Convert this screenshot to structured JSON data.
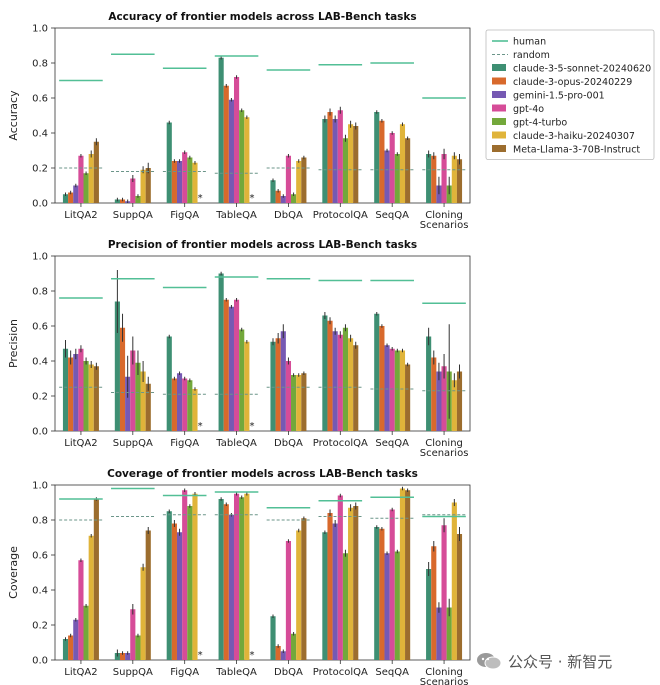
{
  "colors": {
    "human": "#52bf96",
    "random": "#6b9589",
    "claude-3-5-sonnet-20240620": "#3e8f73",
    "claude-3-opus-20240229": "#d8692c",
    "gemini-1.5-pro-001": "#7659b3",
    "gpt-4o": "#d64c98",
    "gpt-4-turbo": "#73a83b",
    "claude-3-haiku-20240307": "#e0b43a",
    "Meta-Llama-3-70B-Instruct": "#9c6d2e"
  },
  "legend": {
    "placement": "outside-right",
    "entries": [
      {
        "label": "human",
        "style": "solid",
        "colorKey": "human"
      },
      {
        "label": "random",
        "style": "dashed",
        "colorKey": "random"
      },
      {
        "label": "claude-3-5-sonnet-20240620",
        "style": "bar",
        "colorKey": "claude-3-5-sonnet-20240620"
      },
      {
        "label": "claude-3-opus-20240229",
        "style": "bar",
        "colorKey": "claude-3-opus-20240229"
      },
      {
        "label": "gemini-1.5-pro-001",
        "style": "bar",
        "colorKey": "gemini-1.5-pro-001"
      },
      {
        "label": "gpt-4o",
        "style": "bar",
        "colorKey": "gpt-4o"
      },
      {
        "label": "gpt-4-turbo",
        "style": "bar",
        "colorKey": "gpt-4-turbo"
      },
      {
        "label": "claude-3-haiku-20240307",
        "style": "bar",
        "colorKey": "claude-3-haiku-20240307"
      },
      {
        "label": "Meta-Llama-3-70B-Instruct",
        "style": "bar",
        "colorKey": "Meta-Llama-3-70B-Instruct"
      }
    ]
  },
  "watermark": {
    "text": "公众号 · 新智元"
  },
  "chart_data": [
    {
      "type": "bar",
      "title": "Accuracy of frontier models across LAB-Bench tasks",
      "xlabel": "",
      "ylabel": "Accuracy",
      "ylim": [
        0,
        1.0
      ],
      "yticks": [
        "0.0",
        "0.2",
        "0.4",
        "0.6",
        "0.8",
        "1.0"
      ],
      "grid": false,
      "categories": [
        "LitQA2",
        "SuppQA",
        "FigQA",
        "TableQA",
        "DbQA",
        "ProtocolQA",
        "SeqQA",
        "Cloning\nScenarios"
      ],
      "human": [
        0.7,
        0.85,
        0.77,
        0.84,
        0.76,
        0.79,
        0.8,
        0.6
      ],
      "random": [
        0.2,
        0.18,
        0.18,
        0.17,
        0.2,
        0.19,
        0.19,
        0.19
      ],
      "missing_markers": [
        {
          "category": "FigQA",
          "symbol": "*"
        },
        {
          "category": "TableQA",
          "symbol": "*"
        }
      ],
      "series": [
        {
          "name": "claude-3-5-sonnet-20240620",
          "values": [
            0.05,
            0.02,
            0.46,
            0.83,
            0.13,
            0.48,
            0.52,
            0.28
          ],
          "errors": [
            0.01,
            0.01,
            0.01,
            0.01,
            0.01,
            0.02,
            0.01,
            0.02
          ]
        },
        {
          "name": "claude-3-opus-20240229",
          "values": [
            0.06,
            0.02,
            0.24,
            0.67,
            0.07,
            0.52,
            0.47,
            0.27
          ],
          "errors": [
            0.01,
            0.01,
            0.01,
            0.01,
            0.01,
            0.02,
            0.01,
            0.02
          ]
        },
        {
          "name": "gemini-1.5-pro-001",
          "values": [
            0.1,
            0.01,
            0.24,
            0.59,
            0.04,
            0.48,
            0.3,
            0.1
          ],
          "errors": [
            0.01,
            0.01,
            0.01,
            0.01,
            0.01,
            0.02,
            0.01,
            0.05
          ]
        },
        {
          "name": "gpt-4o",
          "values": [
            0.27,
            0.14,
            0.29,
            0.72,
            0.27,
            0.53,
            0.4,
            0.28
          ],
          "errors": [
            0.01,
            0.02,
            0.01,
            0.01,
            0.01,
            0.02,
            0.01,
            0.03
          ]
        },
        {
          "name": "gpt-4-turbo",
          "values": [
            0.17,
            0.04,
            0.26,
            0.53,
            0.05,
            0.37,
            0.28,
            0.1
          ],
          "errors": [
            0.01,
            0.01,
            0.01,
            0.01,
            0.01,
            0.02,
            0.01,
            0.05
          ]
        },
        {
          "name": "claude-3-haiku-20240307",
          "values": [
            0.28,
            0.19,
            0.23,
            0.49,
            0.24,
            0.45,
            0.45,
            0.27
          ],
          "errors": [
            0.02,
            0.02,
            0.01,
            0.01,
            0.01,
            0.02,
            0.01,
            0.02
          ]
        },
        {
          "name": "Meta-Llama-3-70B-Instruct",
          "values": [
            0.35,
            0.2,
            0.0,
            0.0,
            0.26,
            0.44,
            0.37,
            0.25
          ],
          "errors": [
            0.02,
            0.03,
            0.0,
            0.0,
            0.01,
            0.02,
            0.01,
            0.03
          ]
        }
      ]
    },
    {
      "type": "bar",
      "title": "Precision of frontier models across LAB-Bench tasks",
      "xlabel": "",
      "ylabel": "Precision",
      "ylim": [
        0,
        1.0
      ],
      "yticks": [
        "0.0",
        "0.2",
        "0.4",
        "0.6",
        "0.8",
        "1.0"
      ],
      "grid": false,
      "categories": [
        "LitQA2",
        "SuppQA",
        "FigQA",
        "TableQA",
        "DbQA",
        "ProtocolQA",
        "SeqQA",
        "Cloning\nScenarios"
      ],
      "human": [
        0.76,
        0.87,
        0.82,
        0.88,
        0.87,
        0.86,
        0.86,
        0.73
      ],
      "random": [
        0.25,
        0.22,
        0.21,
        0.21,
        0.25,
        0.25,
        0.24,
        0.23
      ],
      "missing_markers": [
        {
          "category": "FigQA",
          "symbol": "*"
        },
        {
          "category": "TableQA",
          "symbol": "*"
        }
      ],
      "series": [
        {
          "name": "claude-3-5-sonnet-20240620",
          "values": [
            0.47,
            0.74,
            0.54,
            0.9,
            0.51,
            0.66,
            0.67,
            0.54
          ],
          "errors": [
            0.05,
            0.18,
            0.01,
            0.01,
            0.02,
            0.02,
            0.01,
            0.05
          ]
        },
        {
          "name": "claude-3-opus-20240229",
          "values": [
            0.42,
            0.59,
            0.3,
            0.75,
            0.53,
            0.63,
            0.6,
            0.42
          ],
          "errors": [
            0.04,
            0.08,
            0.01,
            0.01,
            0.03,
            0.02,
            0.01,
            0.04
          ]
        },
        {
          "name": "gemini-1.5-pro-001",
          "values": [
            0.44,
            0.31,
            0.33,
            0.71,
            0.57,
            0.57,
            0.49,
            0.34
          ],
          "errors": [
            0.03,
            0.12,
            0.01,
            0.01,
            0.04,
            0.02,
            0.01,
            0.05
          ]
        },
        {
          "name": "gpt-4o",
          "values": [
            0.47,
            0.46,
            0.3,
            0.75,
            0.4,
            0.55,
            0.47,
            0.37
          ],
          "errors": [
            0.02,
            0.08,
            0.01,
            0.01,
            0.02,
            0.02,
            0.01,
            0.07
          ]
        },
        {
          "name": "gpt-4-turbo",
          "values": [
            0.4,
            0.39,
            0.29,
            0.58,
            0.32,
            0.59,
            0.46,
            0.34
          ],
          "errors": [
            0.02,
            0.07,
            0.01,
            0.01,
            0.01,
            0.02,
            0.01,
            0.27
          ]
        },
        {
          "name": "claude-3-haiku-20240307",
          "values": [
            0.38,
            0.34,
            0.24,
            0.51,
            0.32,
            0.53,
            0.46,
            0.29
          ],
          "errors": [
            0.02,
            0.06,
            0.01,
            0.01,
            0.01,
            0.02,
            0.01,
            0.04
          ]
        },
        {
          "name": "Meta-Llama-3-70B-Instruct",
          "values": [
            0.37,
            0.27,
            0.0,
            0.0,
            0.33,
            0.49,
            0.38,
            0.34
          ],
          "errors": [
            0.02,
            0.04,
            0.0,
            0.0,
            0.01,
            0.02,
            0.01,
            0.04
          ]
        }
      ]
    },
    {
      "type": "bar",
      "title": "Coverage of frontier models across LAB-Bench tasks",
      "xlabel": "",
      "ylabel": "Coverage",
      "ylim": [
        0,
        1.0
      ],
      "yticks": [
        "0.0",
        "0.2",
        "0.4",
        "0.6",
        "0.8",
        "1.0"
      ],
      "grid": false,
      "categories": [
        "LitQA2",
        "SuppQA",
        "FigQA",
        "TableQA",
        "DbQA",
        "ProtocolQA",
        "SeqQA",
        "Cloning\nScenarios"
      ],
      "human": [
        0.92,
        0.98,
        0.94,
        0.96,
        0.87,
        0.91,
        0.93,
        0.82
      ],
      "random": [
        0.8,
        0.82,
        0.83,
        0.83,
        0.8,
        0.82,
        0.81,
        0.83
      ],
      "missing_markers": [
        {
          "category": "FigQA",
          "symbol": "*"
        },
        {
          "category": "TableQA",
          "symbol": "*"
        }
      ],
      "series": [
        {
          "name": "claude-3-5-sonnet-20240620",
          "values": [
            0.12,
            0.04,
            0.85,
            0.92,
            0.25,
            0.73,
            0.76,
            0.52
          ],
          "errors": [
            0.01,
            0.02,
            0.01,
            0.01,
            0.01,
            0.01,
            0.01,
            0.04
          ]
        },
        {
          "name": "claude-3-opus-20240229",
          "values": [
            0.14,
            0.04,
            0.78,
            0.89,
            0.08,
            0.84,
            0.75,
            0.65
          ],
          "errors": [
            0.01,
            0.01,
            0.02,
            0.01,
            0.01,
            0.02,
            0.01,
            0.03
          ]
        },
        {
          "name": "gemini-1.5-pro-001",
          "values": [
            0.23,
            0.04,
            0.73,
            0.83,
            0.05,
            0.78,
            0.61,
            0.3
          ],
          "errors": [
            0.01,
            0.01,
            0.02,
            0.01,
            0.01,
            0.02,
            0.01,
            0.03
          ]
        },
        {
          "name": "gpt-4o",
          "values": [
            0.57,
            0.29,
            0.97,
            0.95,
            0.68,
            0.94,
            0.86,
            0.77
          ],
          "errors": [
            0.01,
            0.03,
            0.01,
            0.01,
            0.01,
            0.01,
            0.01,
            0.04
          ]
        },
        {
          "name": "gpt-4-turbo",
          "values": [
            0.31,
            0.14,
            0.88,
            0.93,
            0.15,
            0.61,
            0.62,
            0.3
          ],
          "errors": [
            0.01,
            0.01,
            0.01,
            0.01,
            0.01,
            0.02,
            0.01,
            0.05
          ]
        },
        {
          "name": "claude-3-haiku-20240307",
          "values": [
            0.71,
            0.53,
            0.95,
            0.95,
            0.74,
            0.87,
            0.98,
            0.9
          ],
          "errors": [
            0.01,
            0.02,
            0.01,
            0.01,
            0.01,
            0.02,
            0.01,
            0.02
          ]
        },
        {
          "name": "Meta-Llama-3-70B-Instruct",
          "values": [
            0.92,
            0.74,
            0.0,
            0.0,
            0.81,
            0.88,
            0.97,
            0.72
          ],
          "errors": [
            0.01,
            0.02,
            0.0,
            0.0,
            0.01,
            0.02,
            0.01,
            0.04
          ]
        }
      ]
    }
  ]
}
